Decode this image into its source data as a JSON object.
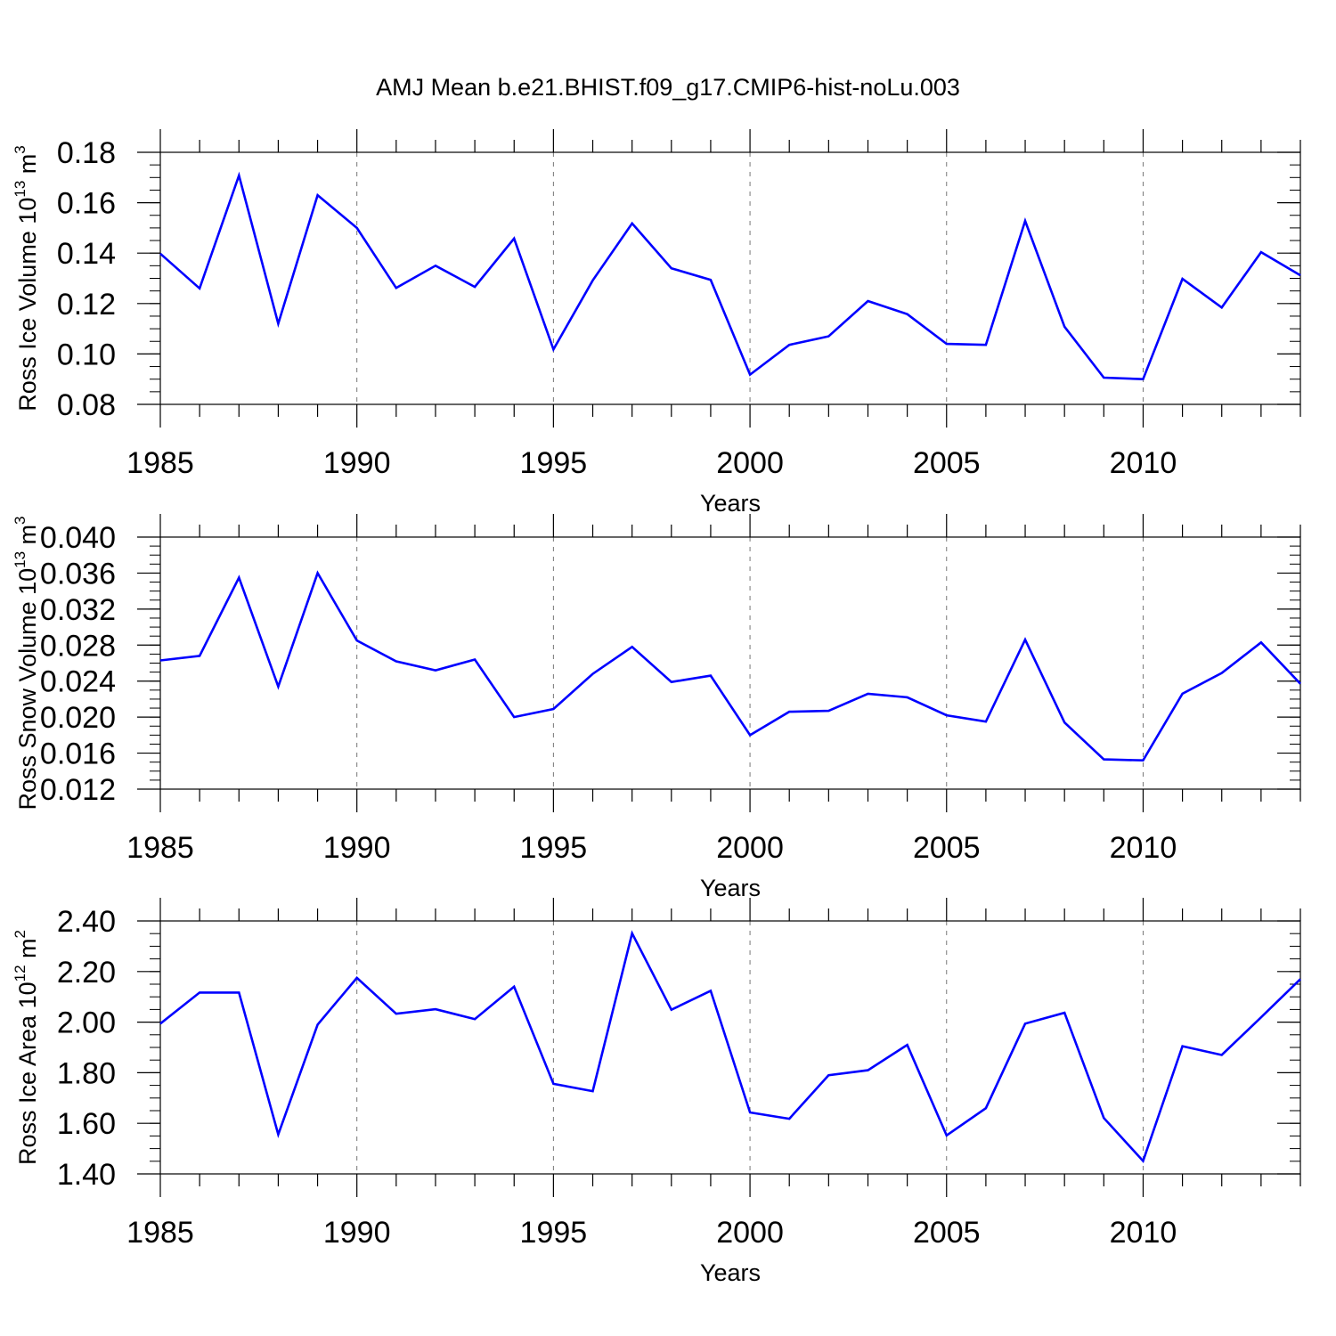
{
  "title": "AMJ Mean b.e21.BHIST.f09_g17.CMIP6-hist-noLu.003",
  "colors": {
    "series": "#0000ff",
    "axis": "#000000",
    "grid": "#777777"
  },
  "chart_data": [
    {
      "type": "line",
      "name": "ross-ice-volume",
      "ylabel": "Ross Ice Volume 10",
      "ylabel_exp": "13",
      "ylabel_unit": " m",
      "ylabel_unit_exp": "3",
      "xlabel": "Years",
      "xlim": [
        1985,
        2014
      ],
      "ylim": [
        0.08,
        0.18
      ],
      "x_major_ticks": [
        1985,
        1990,
        1995,
        2000,
        2005,
        2010
      ],
      "x_tick_labels": [
        "1985",
        "1990",
        "1995",
        "2000",
        "2005",
        "2010"
      ],
      "y_major_ticks": [
        0.08,
        0.1,
        0.12,
        0.14,
        0.16,
        0.18
      ],
      "y_tick_labels": [
        "0.08",
        "0.10",
        "0.12",
        "0.14",
        "0.16",
        "0.18"
      ],
      "y_minor_step": 0.005,
      "grid_x": [
        1990,
        1995,
        2000,
        2005,
        2010
      ],
      "x": [
        1985,
        1986,
        1987,
        1988,
        1989,
        1990,
        1991,
        1992,
        1993,
        1994,
        1995,
        1996,
        1997,
        1998,
        1999,
        2000,
        2001,
        2002,
        2003,
        2004,
        2005,
        2006,
        2007,
        2008,
        2009,
        2010,
        2011,
        2012,
        2013,
        2014
      ],
      "values": [
        0.1398,
        0.126,
        0.1708,
        0.112,
        0.163,
        0.15,
        0.1262,
        0.135,
        0.1266,
        0.1458,
        0.1018,
        0.1292,
        0.1518,
        0.134,
        0.1294,
        0.0918,
        0.1036,
        0.107,
        0.121,
        0.1158,
        0.104,
        0.1036,
        0.1528,
        0.1108,
        0.0906,
        0.09,
        0.1298,
        0.1184,
        0.1404,
        0.1312
      ]
    },
    {
      "type": "line",
      "name": "ross-snow-volume",
      "ylabel": "Ross Snow Volume 10",
      "ylabel_exp": "13",
      "ylabel_unit": " m",
      "ylabel_unit_exp": "3",
      "xlabel": "Years",
      "xlim": [
        1985,
        2014
      ],
      "ylim": [
        0.012,
        0.04
      ],
      "x_major_ticks": [
        1985,
        1990,
        1995,
        2000,
        2005,
        2010
      ],
      "x_tick_labels": [
        "1985",
        "1990",
        "1995",
        "2000",
        "2005",
        "2010"
      ],
      "y_major_ticks": [
        0.012,
        0.016,
        0.02,
        0.024,
        0.028,
        0.032,
        0.036,
        0.04
      ],
      "y_tick_labels": [
        "0.012",
        "0.016",
        "0.020",
        "0.024",
        "0.028",
        "0.032",
        "0.036",
        "0.040"
      ],
      "y_minor_step": 0.001,
      "grid_x": [
        1990,
        1995,
        2000,
        2005,
        2010
      ],
      "x": [
        1985,
        1986,
        1987,
        1988,
        1989,
        1990,
        1991,
        1992,
        1993,
        1994,
        1995,
        1996,
        1997,
        1998,
        1999,
        2000,
        2001,
        2002,
        2003,
        2004,
        2005,
        2006,
        2007,
        2008,
        2009,
        2010,
        2011,
        2012,
        2013,
        2014
      ],
      "values": [
        0.0263,
        0.0268,
        0.0355,
        0.0234,
        0.036,
        0.0285,
        0.0262,
        0.0252,
        0.0264,
        0.02,
        0.0209,
        0.0248,
        0.0278,
        0.0239,
        0.0246,
        0.018,
        0.0206,
        0.0207,
        0.0226,
        0.0222,
        0.0202,
        0.0195,
        0.0286,
        0.0194,
        0.0153,
        0.0152,
        0.0226,
        0.0249,
        0.0283,
        0.0237
      ]
    },
    {
      "type": "line",
      "name": "ross-ice-area",
      "ylabel": "Ross Ice Area 10",
      "ylabel_exp": "12",
      "ylabel_unit": " m",
      "ylabel_unit_exp": "2",
      "xlabel": "Years",
      "xlim": [
        1985,
        2014
      ],
      "ylim": [
        1.4,
        2.4
      ],
      "x_major_ticks": [
        1985,
        1990,
        1995,
        2000,
        2005,
        2010
      ],
      "x_tick_labels": [
        "1985",
        "1990",
        "1995",
        "2000",
        "2005",
        "2010"
      ],
      "y_major_ticks": [
        1.4,
        1.6,
        1.8,
        2.0,
        2.2,
        2.4
      ],
      "y_tick_labels": [
        "1.40",
        "1.60",
        "1.80",
        "2.00",
        "2.20",
        "2.40"
      ],
      "y_minor_step": 0.05,
      "grid_x": [
        1990,
        1995,
        2000,
        2005,
        2010
      ],
      "x": [
        1985,
        1986,
        1987,
        1988,
        1989,
        1990,
        1991,
        1992,
        1993,
        1994,
        1995,
        1996,
        1997,
        1998,
        1999,
        2000,
        2001,
        2002,
        2003,
        2004,
        2005,
        2006,
        2007,
        2008,
        2009,
        2010,
        2011,
        2012,
        2013,
        2014
      ],
      "values": [
        1.994,
        2.117,
        2.117,
        1.556,
        1.99,
        2.175,
        2.033,
        2.051,
        2.012,
        2.14,
        1.756,
        1.727,
        2.351,
        2.049,
        2.124,
        1.643,
        1.618,
        1.79,
        1.81,
        1.91,
        1.552,
        1.66,
        1.994,
        2.037,
        1.621,
        1.451,
        1.905,
        1.87,
        2.019,
        2.17
      ]
    }
  ]
}
